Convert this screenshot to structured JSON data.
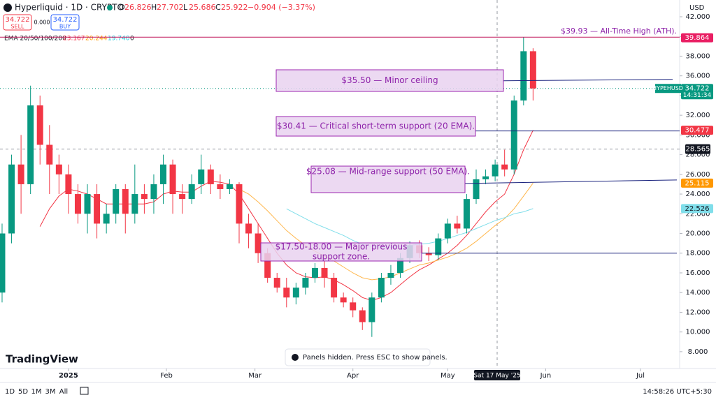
{
  "ui": {
    "symbol": "Hyperliquid · 1D · CRYPTO",
    "ohlc": {
      "labels": [
        "O",
        "H",
        "L",
        "C"
      ],
      "values": [
        26.826,
        27.702,
        25.686,
        25.922
      ],
      "change": "−0.904 (−3.37%)"
    },
    "sell": {
      "price": 34.722,
      "label": "SELL"
    },
    "spread": "0.000",
    "buy": {
      "price": 34.722,
      "label": "BUY"
    },
    "currency": "USD",
    "logo": "TradingView",
    "notice": "Panels hidden. Press ESC to show panels.",
    "ranges": [
      "1D",
      "5D",
      "1M",
      "3M",
      "All"
    ],
    "clock": "14:58:26 UTC+5:30",
    "crosshair": {
      "date": "Sat 17 May '25",
      "price": 28.565
    }
  },
  "chart_data": {
    "type": "candlestick",
    "open": [
      14,
      20,
      27,
      25,
      33,
      29,
      27,
      26,
      24,
      22,
      24,
      21,
      22,
      24.5,
      22,
      24,
      23.5,
      25,
      27,
      24,
      23.5,
      25,
      26.5,
      25,
      24.5,
      25,
      21,
      20,
      18,
      15.5,
      14.5,
      13.5,
      14.5,
      15.5,
      16.5,
      15.5,
      13.5,
      13,
      12.2,
      11,
      13.5,
      15.5,
      16,
      17.5,
      18.8,
      18,
      17.8,
      19.5,
      21,
      20.5,
      23.5,
      25.5,
      25.8,
      27,
      26.5,
      33.5,
      38.5
    ],
    "high": [
      21,
      28,
      30,
      35,
      34,
      31,
      28,
      27,
      25,
      25,
      25,
      23,
      25,
      25,
      27,
      25,
      26,
      28,
      27.5,
      25,
      26,
      28,
      27,
      26,
      25.5,
      25.2,
      22,
      21,
      18.5,
      16,
      15.5,
      15,
      16,
      17,
      17.2,
      16,
      14,
      13.5,
      12.5,
      14,
      16,
      16.8,
      18,
      19.2,
      19.3,
      18.6,
      20,
      21.5,
      21.8,
      24,
      26.5,
      26.5,
      27.5,
      28.5,
      34,
      39.93,
      38.8
    ],
    "low": [
      13,
      19,
      22,
      24,
      27,
      24,
      24,
      22,
      21,
      20,
      19.5,
      20,
      21,
      20,
      21,
      22,
      22,
      23,
      22,
      22,
      23,
      24,
      24,
      23.5,
      24,
      19,
      18.5,
      17,
      15,
      14,
      12.5,
      12.8,
      13.8,
      15,
      14.5,
      13,
      12.5,
      11.5,
      10.2,
      9.5,
      13,
      14.8,
      15.5,
      17,
      17.5,
      17.2,
      17.3,
      19,
      20,
      20,
      23,
      25,
      25.3,
      25.8,
      26,
      33,
      33.5
    ],
    "close": [
      20,
      27,
      25,
      33,
      29,
      27,
      26,
      24,
      22,
      24,
      21,
      22,
      24.5,
      22,
      24,
      23.5,
      25,
      27,
      24,
      23.5,
      25,
      26.5,
      25,
      24.5,
      25,
      21,
      20,
      18,
      15.5,
      14.5,
      13.5,
      14.5,
      15.5,
      16.5,
      15.5,
      13.5,
      13,
      12.2,
      11,
      13.5,
      15.5,
      16,
      17.5,
      18.8,
      18,
      17.8,
      19.5,
      21,
      20.5,
      23.5,
      25.5,
      25.8,
      27,
      26.5,
      33.5,
      38.5,
      34.722
    ],
    "up_color": "#089981",
    "down_color": "#f23645",
    "ema_legend": {
      "label": "EMA 20/50/100/200",
      "values": [
        23.167,
        20.244,
        19.74,
        0
      ],
      "value_labels": [
        "23.167",
        "20.244",
        "19.740",
        "0"
      ],
      "colors": [
        "#f23645",
        "#ff9800",
        "#26c6da",
        "#131722"
      ]
    },
    "ema_lines": [
      {
        "color": "#f23645",
        "values": [
          null,
          null,
          null,
          null,
          20.7,
          22.5,
          23.8,
          24.5,
          24.3,
          24,
          23.5,
          23,
          23,
          23,
          23,
          23,
          23.2,
          24,
          24.3,
          24.2,
          24.2,
          24.8,
          25.3,
          25.2,
          25,
          24,
          22.5,
          21,
          19.5,
          18,
          16.8,
          16,
          15.6,
          15.5,
          15.6,
          15.3,
          14.8,
          14.2,
          13.5,
          13.2,
          13.5,
          14,
          14.8,
          15.6,
          16.3,
          16.8,
          17.4,
          18,
          18.8,
          19.8,
          21,
          22.2,
          23.2,
          24,
          26,
          28.5,
          30.477
        ]
      },
      {
        "color": "#ffb74d",
        "values": [
          null,
          null,
          null,
          null,
          null,
          null,
          null,
          null,
          null,
          null,
          null,
          null,
          null,
          null,
          null,
          null,
          null,
          null,
          null,
          null,
          null,
          null,
          null,
          null,
          null,
          24.5,
          24,
          23.2,
          22.3,
          21.3,
          20.3,
          19.5,
          18.8,
          18.2,
          17.7,
          17.2,
          16.6,
          16,
          15.5,
          15.3,
          15.4,
          15.6,
          16,
          16.4,
          16.8,
          17,
          17.3,
          17.6,
          18,
          18.5,
          19.2,
          20,
          20.8,
          21.5,
          22.5,
          23.8,
          25.115
        ]
      },
      {
        "color": "#80deea",
        "values": [
          null,
          null,
          null,
          null,
          null,
          null,
          null,
          null,
          null,
          null,
          null,
          null,
          null,
          null,
          null,
          null,
          null,
          null,
          null,
          null,
          null,
          null,
          null,
          null,
          null,
          null,
          null,
          null,
          null,
          null,
          22.5,
          22,
          21.5,
          21,
          20.6,
          20.2,
          19.8,
          19.3,
          18.9,
          18.7,
          18.6,
          18.6,
          18.7,
          18.8,
          18.9,
          19,
          19.2,
          19.5,
          19.8,
          20.1,
          20.5,
          20.9,
          21.3,
          21.6,
          22,
          22.2,
          22.526
        ]
      }
    ],
    "ylim": [
      5.3,
      43.7
    ],
    "yticks": [
      {
        "value": 8,
        "label": "8.000"
      },
      {
        "value": 10,
        "label": "10.000"
      },
      {
        "value": 12,
        "label": "12.000"
      },
      {
        "value": 14,
        "label": "14.000"
      },
      {
        "value": 16,
        "label": "16.000"
      },
      {
        "value": 18,
        "label": "18.000"
      },
      {
        "value": 20,
        "label": "20.000"
      },
      {
        "value": 22,
        "label": "22.000"
      },
      {
        "value": 24,
        "label": "24.000"
      },
      {
        "value": 26,
        "label": "26.000"
      },
      {
        "value": 28,
        "label": "28.000"
      },
      {
        "value": 30,
        "label": "30.000"
      },
      {
        "value": 32,
        "label": "32.000"
      },
      {
        "value": 34,
        "label": "34.000"
      },
      {
        "value": 36,
        "label": "36.000"
      },
      {
        "value": 38,
        "label": "38.000"
      },
      {
        "value": 40,
        "label": "40.000"
      },
      {
        "value": 42,
        "label": "42.000"
      }
    ],
    "xlim": [
      -0.22,
      71.46
    ],
    "xticks": [
      {
        "value": 7,
        "label": "2025"
      },
      {
        "value": 17.33,
        "label": "Feb"
      },
      {
        "value": 26.67,
        "label": "Mar"
      },
      {
        "value": 37,
        "label": "Apr"
      },
      {
        "value": 47,
        "label": "May"
      },
      {
        "value": 57.33,
        "label": "Jun"
      },
      {
        "value": 67.33,
        "label": "Jul"
      }
    ],
    "price_labels": [
      {
        "value": 39.864,
        "color": "#e91e63"
      },
      {
        "value": 34.722,
        "color": "#089981",
        "tag": "HYPEHUSD",
        "time": "14:31:34"
      },
      {
        "value": 30.477,
        "color": "#f23645"
      },
      {
        "value": 25.115,
        "color": "#ff9800"
      },
      {
        "value": 22.526,
        "color": "#80deea"
      }
    ],
    "annotations": [
      {
        "level": 39.93,
        "lines": [
          "$39.93 — All-Time High (ATH)."
        ]
      },
      {
        "level": 35.5,
        "lines": [
          "$35.50 — Minor ceiling"
        ]
      },
      {
        "level": 30.41,
        "lines": [
          "$30.41 — Critical short-term support (20 EMA)."
        ]
      },
      {
        "level": 25.08,
        "lines": [
          "$25.08 — Mid-range support (50 EMA)."
        ]
      },
      {
        "level": 18,
        "lines": [
          "$17.50-18.00 — Major previous",
          "support zone."
        ]
      }
    ]
  }
}
